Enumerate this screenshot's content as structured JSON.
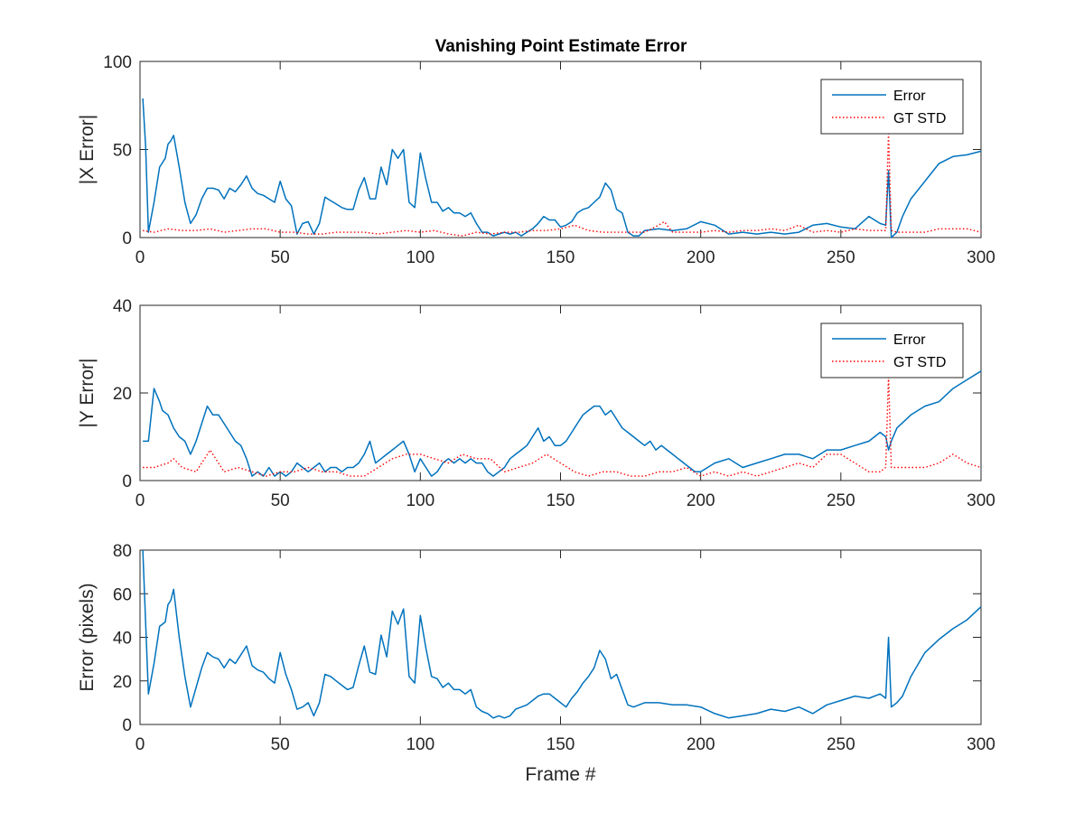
{
  "figure": {
    "title": "Vanishing Point Estimate Error"
  },
  "colors": {
    "error": "#0072BD",
    "gt_std": "#FF0000",
    "axes": "#262626",
    "background": "#FFFFFF"
  },
  "chart_data": [
    {
      "type": "line",
      "title": "Vanishing Point Estimate Error",
      "xlabel": "",
      "ylabel": "|X Error|",
      "xlim": [
        0,
        300
      ],
      "ylim": [
        0,
        100
      ],
      "xticks": [
        0,
        50,
        100,
        150,
        200,
        250,
        300
      ],
      "yticks": [
        0,
        50,
        100
      ],
      "grid": false,
      "legend": {
        "position": "top-right",
        "entries": [
          "Error",
          "GT STD"
        ]
      },
      "series": [
        {
          "name": "Error",
          "style": "solid",
          "x": [
            1,
            2,
            3,
            5,
            7,
            9,
            10,
            11,
            12,
            14,
            16,
            18,
            20,
            22,
            24,
            26,
            28,
            30,
            32,
            34,
            36,
            38,
            40,
            42,
            44,
            46,
            48,
            50,
            52,
            54,
            56,
            58,
            60,
            62,
            64,
            66,
            68,
            70,
            72,
            74,
            76,
            78,
            80,
            82,
            84,
            86,
            88,
            90,
            92,
            94,
            96,
            98,
            100,
            102,
            104,
            106,
            108,
            110,
            112,
            114,
            116,
            118,
            120,
            122,
            124,
            126,
            128,
            130,
            132,
            134,
            136,
            138,
            140,
            142,
            144,
            146,
            148,
            150,
            152,
            154,
            156,
            158,
            160,
            162,
            164,
            166,
            168,
            170,
            172,
            174,
            176,
            178,
            180,
            185,
            190,
            195,
            200,
            205,
            210,
            215,
            220,
            225,
            230,
            235,
            240,
            245,
            250,
            255,
            260,
            264,
            266,
            267,
            268,
            270,
            272,
            275,
            280,
            285,
            290,
            295,
            300
          ],
          "y": [
            79,
            52,
            3,
            20,
            40,
            45,
            53,
            55,
            58,
            40,
            20,
            8,
            13,
            22,
            28,
            28,
            27,
            22,
            28,
            26,
            30,
            35,
            28,
            25,
            24,
            22,
            20,
            32,
            22,
            18,
            2,
            8,
            9,
            2,
            8,
            23,
            21,
            19,
            17,
            16,
            16,
            27,
            34,
            22,
            22,
            40,
            30,
            50,
            45,
            50,
            20,
            17,
            48,
            33,
            20,
            20,
            15,
            17,
            14,
            14,
            12,
            14,
            8,
            3,
            3,
            1,
            2,
            3,
            2,
            3,
            1,
            3,
            5,
            8,
            12,
            10,
            10,
            6,
            7,
            9,
            14,
            16,
            17,
            20,
            23,
            31,
            27,
            16,
            14,
            3,
            1,
            1,
            4,
            5,
            4,
            5,
            9,
            7,
            2,
            3,
            2,
            3,
            2,
            3,
            7,
            8,
            6,
            5,
            12,
            8,
            7,
            38,
            0,
            3,
            12,
            22,
            32,
            42,
            46,
            47,
            49
          ]
        },
        {
          "name": "GT STD",
          "style": "dotted",
          "x": [
            1,
            5,
            10,
            15,
            20,
            25,
            30,
            35,
            40,
            45,
            50,
            55,
            60,
            65,
            70,
            75,
            80,
            85,
            90,
            95,
            100,
            105,
            110,
            115,
            120,
            125,
            130,
            135,
            140,
            145,
            150,
            155,
            160,
            165,
            170,
            175,
            180,
            185,
            187,
            190,
            195,
            200,
            205,
            210,
            215,
            220,
            225,
            230,
            235,
            240,
            245,
            250,
            255,
            260,
            264,
            266,
            267,
            268,
            270,
            275,
            280,
            285,
            290,
            295,
            300
          ],
          "y": [
            4,
            3,
            5,
            4,
            4,
            5,
            3,
            4,
            5,
            5,
            3,
            3,
            2,
            2,
            3,
            3,
            3,
            2,
            3,
            4,
            3,
            4,
            2,
            1,
            3,
            2,
            3,
            3,
            4,
            4,
            5,
            7,
            4,
            3,
            3,
            3,
            3,
            7,
            9,
            3,
            3,
            3,
            4,
            3,
            4,
            4,
            5,
            4,
            7,
            3,
            4,
            3,
            5,
            4,
            4,
            4,
            60,
            4,
            3,
            3,
            3,
            5,
            5,
            5,
            3
          ]
        }
      ]
    },
    {
      "type": "line",
      "title": "",
      "xlabel": "",
      "ylabel": "|Y Error|",
      "xlim": [
        0,
        300
      ],
      "ylim": [
        0,
        40
      ],
      "xticks": [
        0,
        50,
        100,
        150,
        200,
        250,
        300
      ],
      "yticks": [
        0,
        20,
        40
      ],
      "grid": false,
      "legend": {
        "position": "top-right",
        "entries": [
          "Error",
          "GT STD"
        ]
      },
      "series": [
        {
          "name": "Error",
          "style": "solid",
          "x": [
            1,
            3,
            5,
            7,
            8,
            10,
            12,
            14,
            16,
            18,
            20,
            22,
            24,
            26,
            28,
            30,
            32,
            34,
            36,
            38,
            40,
            42,
            44,
            46,
            48,
            50,
            52,
            54,
            56,
            58,
            60,
            62,
            64,
            66,
            68,
            70,
            72,
            74,
            76,
            78,
            80,
            82,
            84,
            86,
            88,
            90,
            92,
            94,
            96,
            98,
            100,
            102,
            104,
            106,
            108,
            110,
            112,
            114,
            116,
            118,
            120,
            122,
            124,
            126,
            128,
            130,
            132,
            134,
            136,
            138,
            140,
            142,
            144,
            146,
            148,
            150,
            152,
            154,
            156,
            158,
            160,
            162,
            164,
            166,
            168,
            170,
            172,
            174,
            176,
            178,
            180,
            182,
            184,
            186,
            188,
            190,
            192,
            194,
            196,
            198,
            200,
            205,
            210,
            215,
            220,
            225,
            230,
            235,
            240,
            245,
            250,
            255,
            260,
            264,
            266,
            267,
            268,
            270,
            275,
            280,
            285,
            290,
            295,
            300
          ],
          "y": [
            9,
            9,
            21,
            18,
            16,
            15,
            12,
            10,
            9,
            6,
            9,
            13,
            17,
            15,
            15,
            13,
            11,
            9,
            8,
            5,
            1,
            2,
            1,
            3,
            1,
            2,
            1,
            2,
            4,
            3,
            2,
            3,
            4,
            2,
            3,
            3,
            2,
            3,
            3,
            4,
            6,
            9,
            4,
            5,
            6,
            7,
            8,
            9,
            6,
            2,
            5,
            3,
            1,
            2,
            4,
            5,
            4,
            5,
            4,
            5,
            4,
            4,
            2,
            1,
            2,
            3,
            5,
            6,
            7,
            8,
            10,
            12,
            9,
            10,
            8,
            8,
            9,
            11,
            13,
            15,
            16,
            17,
            17,
            15,
            16,
            14,
            12,
            11,
            10,
            9,
            8,
            9,
            7,
            8,
            7,
            6,
            5,
            4,
            3,
            2,
            2,
            4,
            5,
            3,
            4,
            5,
            6,
            6,
            5,
            7,
            7,
            8,
            9,
            11,
            10,
            7,
            9,
            12,
            15,
            17,
            18,
            21,
            23,
            25
          ]
        },
        {
          "name": "GT STD",
          "style": "dotted",
          "x": [
            1,
            5,
            10,
            12,
            15,
            20,
            25,
            30,
            35,
            40,
            45,
            50,
            55,
            60,
            65,
            70,
            75,
            80,
            85,
            90,
            95,
            100,
            105,
            110,
            115,
            120,
            125,
            130,
            135,
            140,
            145,
            150,
            155,
            160,
            165,
            170,
            175,
            180,
            185,
            190,
            195,
            200,
            205,
            210,
            215,
            220,
            225,
            230,
            235,
            240,
            245,
            250,
            255,
            260,
            264,
            266,
            267,
            268,
            270,
            275,
            280,
            285,
            290,
            295,
            300
          ],
          "y": [
            3,
            3,
            4,
            5,
            3,
            2,
            7,
            2,
            3,
            2,
            1,
            2,
            2,
            3,
            2,
            2,
            1,
            1,
            3,
            5,
            6,
            6,
            5,
            4,
            6,
            5,
            5,
            2,
            3,
            4,
            6,
            4,
            2,
            1,
            2,
            2,
            1,
            1,
            2,
            2,
            3,
            1,
            2,
            1,
            2,
            1,
            2,
            3,
            4,
            3,
            6,
            6,
            4,
            2,
            2,
            3,
            24,
            3,
            3,
            3,
            3,
            4,
            6,
            4,
            3
          ]
        }
      ]
    },
    {
      "type": "line",
      "title": "",
      "xlabel": "Frame #",
      "ylabel": "Error (pixels)",
      "xlim": [
        0,
        300
      ],
      "ylim": [
        0,
        80
      ],
      "xticks": [
        0,
        50,
        100,
        150,
        200,
        250,
        300
      ],
      "yticks": [
        0,
        20,
        40,
        60,
        80
      ],
      "grid": false,
      "legend": null,
      "series": [
        {
          "style": "solid",
          "x": [
            1,
            3,
            5,
            7,
            9,
            10,
            11,
            12,
            14,
            16,
            18,
            20,
            22,
            24,
            26,
            28,
            30,
            32,
            34,
            36,
            38,
            40,
            42,
            44,
            46,
            48,
            50,
            52,
            54,
            56,
            58,
            60,
            62,
            64,
            66,
            68,
            70,
            72,
            74,
            76,
            78,
            80,
            82,
            84,
            86,
            88,
            90,
            92,
            94,
            96,
            98,
            100,
            102,
            104,
            106,
            108,
            110,
            112,
            114,
            116,
            118,
            120,
            122,
            124,
            126,
            128,
            130,
            132,
            134,
            136,
            138,
            140,
            142,
            144,
            146,
            148,
            150,
            152,
            154,
            156,
            158,
            160,
            162,
            164,
            166,
            168,
            170,
            172,
            174,
            176,
            178,
            180,
            185,
            190,
            195,
            200,
            205,
            210,
            215,
            220,
            225,
            230,
            235,
            240,
            245,
            250,
            255,
            260,
            264,
            266,
            267,
            268,
            270,
            272,
            275,
            280,
            285,
            290,
            295,
            300
          ],
          "y": [
            81,
            14,
            28,
            45,
            47,
            55,
            57,
            62,
            40,
            22,
            8,
            17,
            26,
            33,
            31,
            30,
            26,
            30,
            28,
            32,
            36,
            27,
            25,
            24,
            21,
            19,
            33,
            23,
            16,
            7,
            8,
            10,
            4,
            10,
            23,
            22,
            20,
            18,
            16,
            17,
            27,
            36,
            24,
            23,
            41,
            31,
            52,
            46,
            53,
            22,
            19,
            50,
            35,
            22,
            21,
            17,
            19,
            16,
            16,
            14,
            16,
            8,
            6,
            5,
            3,
            4,
            3,
            4,
            7,
            8,
            9,
            11,
            13,
            14,
            14,
            12,
            10,
            8,
            12,
            15,
            19,
            22,
            26,
            34,
            30,
            21,
            23,
            16,
            9,
            8,
            9,
            10,
            10,
            9,
            9,
            8,
            5,
            3,
            4,
            5,
            7,
            6,
            8,
            5,
            9,
            11,
            13,
            12,
            14,
            12,
            40,
            8,
            10,
            13,
            22,
            33,
            39,
            44,
            48,
            54
          ]
        }
      ]
    }
  ]
}
